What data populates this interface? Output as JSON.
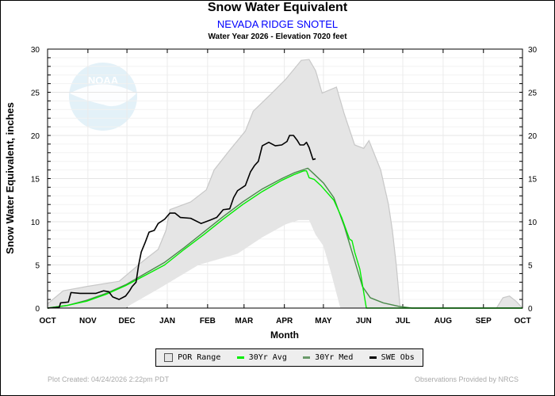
{
  "header": {
    "title": "Snow Water Equivalent",
    "station": "NEVADA RIDGE SNOTEL",
    "subtitle": "Water Year 2026 -  Elevation 7020 feet"
  },
  "footer": {
    "created": "Plot Created: 04/24/2026 2:22pm PDT",
    "credit": "Observations Provided by NRCS"
  },
  "logo_text": "NOAA",
  "chart_data": {
    "type": "line",
    "title": "Snow Water Equivalent",
    "xlabel": "Month",
    "ylabel": "Snow Water Equivalent, inches",
    "x_units": "day of water year",
    "xlim": [
      0,
      365
    ],
    "ylim": [
      0,
      30
    ],
    "yticks": [
      0,
      5,
      10,
      15,
      20,
      25,
      30
    ],
    "xticks": [
      {
        "day": 0,
        "label": "OCT"
      },
      {
        "day": 31,
        "label": "NOV"
      },
      {
        "day": 61,
        "label": "DEC"
      },
      {
        "day": 92,
        "label": "JAN"
      },
      {
        "day": 123,
        "label": "FEB"
      },
      {
        "day": 151,
        "label": "MAR"
      },
      {
        "day": 182,
        "label": "APR"
      },
      {
        "day": 212,
        "label": "MAY"
      },
      {
        "day": 243,
        "label": "JUN"
      },
      {
        "day": 273,
        "label": "JUL"
      },
      {
        "day": 304,
        "label": "AUG"
      },
      {
        "day": 335,
        "label": "SEP"
      },
      {
        "day": 365,
        "label": "OCT"
      }
    ],
    "grid": true,
    "legend_placement": "bottom",
    "colors": {
      "por": "#e5e5e5",
      "por_edge": "#c8c8c8",
      "avg": "#00ee00",
      "med": "#4a8a4a",
      "obs": "#000000"
    },
    "legend": [
      "POR Range",
      "30Yr Avg",
      "30Yr Med",
      "SWE Obs"
    ],
    "por_range": {
      "max": [
        [
          0,
          0.5
        ],
        [
          12,
          2
        ],
        [
          30,
          2.5
        ],
        [
          55,
          3.1
        ],
        [
          73,
          5.4
        ],
        [
          85,
          6.8
        ],
        [
          91,
          9
        ],
        [
          94,
          11.4
        ],
        [
          110,
          12.3
        ],
        [
          122,
          13.7
        ],
        [
          128,
          16
        ],
        [
          140,
          18.3
        ],
        [
          152,
          20.5
        ],
        [
          158,
          22.8
        ],
        [
          171,
          24.7
        ],
        [
          183,
          26.5
        ],
        [
          195,
          28.7
        ],
        [
          201,
          28.8
        ],
        [
          206,
          27.5
        ],
        [
          211,
          24.9
        ],
        [
          222,
          25.6
        ],
        [
          228,
          22.5
        ],
        [
          236,
          18.9
        ],
        [
          243,
          18.5
        ],
        [
          247,
          19.4
        ],
        [
          256,
          16
        ],
        [
          262,
          12
        ],
        [
          265,
          9
        ],
        [
          268,
          5
        ],
        [
          271,
          0
        ],
        [
          345,
          0
        ],
        [
          350,
          1.2
        ],
        [
          355,
          1.4
        ],
        [
          360,
          0.8
        ],
        [
          365,
          0
        ]
      ],
      "min": [
        [
          0,
          0
        ],
        [
          60,
          0
        ],
        [
          64,
          0.4
        ],
        [
          85,
          2.2
        ],
        [
          116,
          5
        ],
        [
          146,
          6.3
        ],
        [
          165,
          8.2
        ],
        [
          183,
          9.7
        ],
        [
          193,
          10.2
        ],
        [
          201,
          10.2
        ],
        [
          206,
          8.5
        ],
        [
          212,
          7.2
        ],
        [
          218,
          4
        ],
        [
          225,
          0
        ],
        [
          365,
          0
        ]
      ]
    },
    "series": [
      {
        "name": "30Yr Avg",
        "points": [
          [
            0,
            0
          ],
          [
            15,
            0.3
          ],
          [
            30,
            0.8
          ],
          [
            45,
            1.6
          ],
          [
            60,
            2.6
          ],
          [
            75,
            3.8
          ],
          [
            90,
            5
          ],
          [
            105,
            6.8
          ],
          [
            120,
            8.5
          ],
          [
            135,
            10.3
          ],
          [
            150,
            12
          ],
          [
            165,
            13.5
          ],
          [
            180,
            14.8
          ],
          [
            190,
            15.5
          ],
          [
            197,
            15.9
          ],
          [
            199,
            15.9
          ],
          [
            201,
            15.1
          ],
          [
            205,
            14.9
          ],
          [
            210,
            14.2
          ],
          [
            220,
            12.5
          ],
          [
            226,
            10.5
          ],
          [
            232,
            8
          ],
          [
            234,
            7.8
          ],
          [
            236,
            6.5
          ],
          [
            240,
            4.5
          ],
          [
            245,
            0
          ],
          [
            365,
            0
          ]
        ]
      },
      {
        "name": "30Yr Med",
        "points": [
          [
            0,
            0
          ],
          [
            15,
            0.3
          ],
          [
            30,
            0.9
          ],
          [
            45,
            1.7
          ],
          [
            60,
            2.7
          ],
          [
            75,
            4
          ],
          [
            90,
            5.3
          ],
          [
            105,
            7
          ],
          [
            120,
            8.8
          ],
          [
            135,
            10.6
          ],
          [
            150,
            12.3
          ],
          [
            165,
            13.8
          ],
          [
            180,
            15
          ],
          [
            190,
            15.7
          ],
          [
            200,
            16.2
          ],
          [
            205,
            15.5
          ],
          [
            212,
            14.5
          ],
          [
            220,
            12.8
          ],
          [
            228,
            9.5
          ],
          [
            236,
            5.5
          ],
          [
            242,
            2.5
          ],
          [
            248,
            1.2
          ],
          [
            258,
            0.6
          ],
          [
            270,
            0.2
          ],
          [
            280,
            0
          ],
          [
            365,
            0
          ]
        ]
      },
      {
        "name": "SWE Obs",
        "points": [
          [
            0,
            0
          ],
          [
            9,
            0.1
          ],
          [
            10,
            0.6
          ],
          [
            16,
            0.7
          ],
          [
            18,
            1.8
          ],
          [
            25,
            1.7
          ],
          [
            37,
            1.7
          ],
          [
            43,
            2
          ],
          [
            47,
            1.9
          ],
          [
            50,
            1.3
          ],
          [
            55,
            1
          ],
          [
            60,
            1.4
          ],
          [
            63,
            2
          ],
          [
            65,
            2.5
          ],
          [
            68,
            3
          ],
          [
            70,
            5
          ],
          [
            72,
            6.5
          ],
          [
            75,
            7.6
          ],
          [
            78,
            8.8
          ],
          [
            82,
            9
          ],
          [
            85,
            9.8
          ],
          [
            90,
            10.3
          ],
          [
            94,
            11
          ],
          [
            98,
            11
          ],
          [
            102,
            10.5
          ],
          [
            110,
            10.4
          ],
          [
            118,
            9.8
          ],
          [
            125,
            10.2
          ],
          [
            130,
            10.5
          ],
          [
            135,
            11.4
          ],
          [
            140,
            11.5
          ],
          [
            143,
            12.8
          ],
          [
            146,
            13.6
          ],
          [
            152,
            14.2
          ],
          [
            156,
            15.8
          ],
          [
            159,
            16.5
          ],
          [
            162,
            17
          ],
          [
            165,
            18.8
          ],
          [
            170,
            19.2
          ],
          [
            175,
            18.8
          ],
          [
            180,
            18.9
          ],
          [
            184,
            19.3
          ],
          [
            186,
            20
          ],
          [
            189,
            20
          ],
          [
            192,
            19.4
          ],
          [
            194,
            18.9
          ],
          [
            197,
            18.9
          ],
          [
            199,
            19.2
          ],
          [
            201,
            18.6
          ],
          [
            204,
            17.2
          ],
          [
            206,
            17.3
          ]
        ]
      }
    ]
  }
}
